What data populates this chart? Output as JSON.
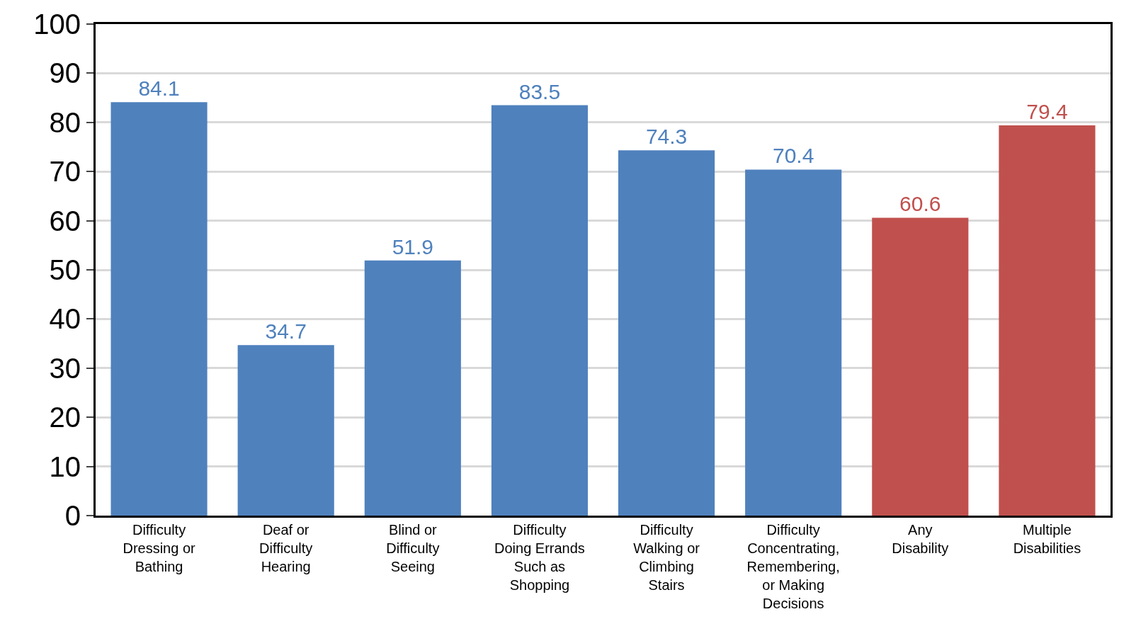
{
  "chart_data": {
    "type": "bar",
    "categories": [
      "Difficulty\nDressing or\nBathing",
      "Deaf or\nDifficulty\nHearing",
      "Blind or\nDifficulty\nSeeing",
      "Difficulty\nDoing Errands\nSuch as\nShopping",
      "Difficulty\nWalking or\nClimbing\nStairs",
      "Difficulty\nConcentrating,\nRemembering,\nor Making\nDecisions",
      "Any\nDisability",
      "Multiple\nDisabilities"
    ],
    "values": [
      84.1,
      34.7,
      51.9,
      83.5,
      74.3,
      70.4,
      60.6,
      79.4
    ],
    "colors": [
      "#4f81bd",
      "#4f81bd",
      "#4f81bd",
      "#4f81bd",
      "#4f81bd",
      "#4f81bd",
      "#c0504d",
      "#c0504d"
    ],
    "ylim": [
      0,
      100
    ],
    "yticks": [
      0,
      10,
      20,
      30,
      40,
      50,
      60,
      70,
      80,
      90,
      100
    ],
    "grid": "y",
    "data_labels": true
  }
}
